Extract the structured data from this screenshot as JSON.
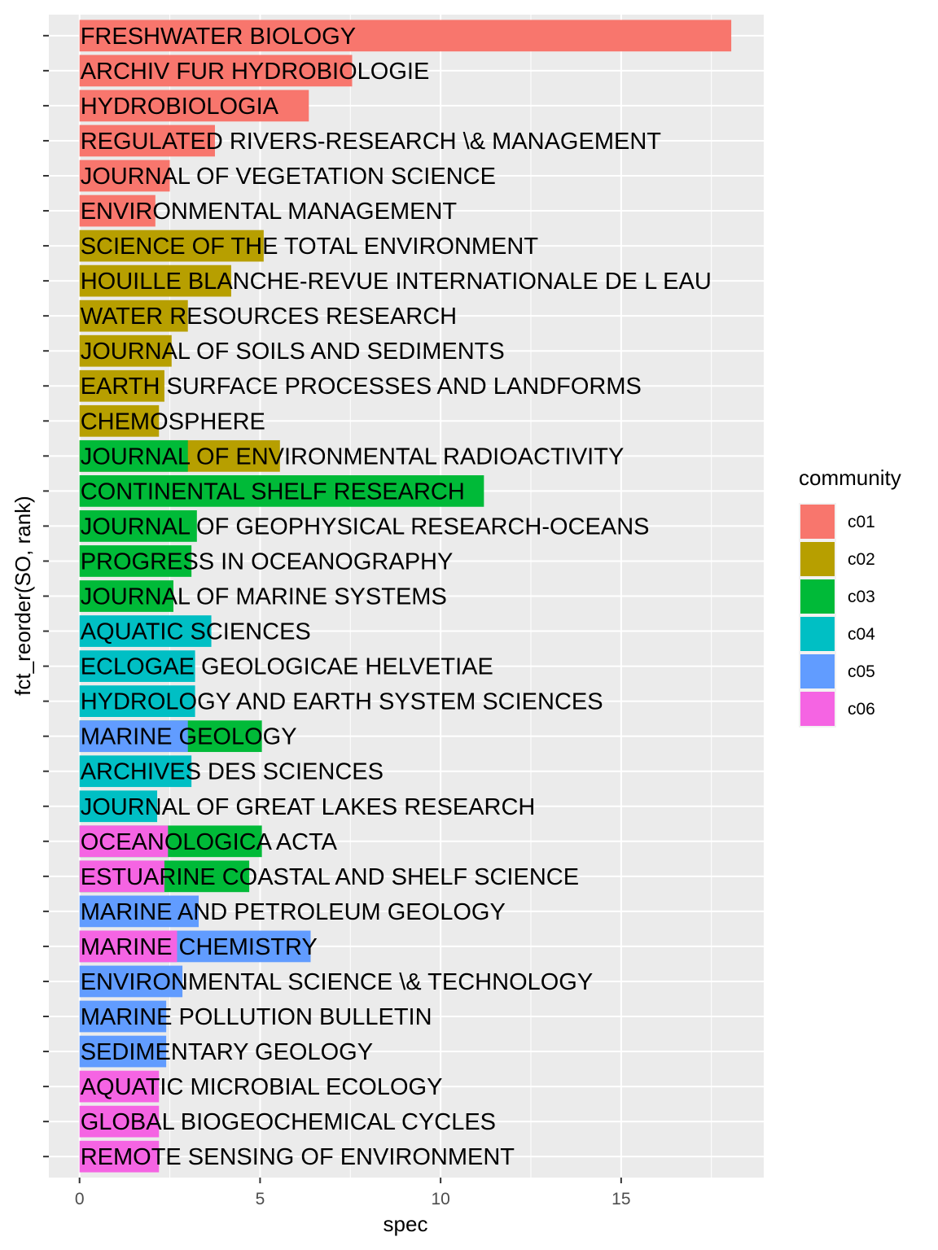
{
  "chart_data": {
    "type": "bar",
    "orientation": "horizontal",
    "xlabel": "spec",
    "ylabel": "fct_reorder(SO, rank)",
    "xlim": [
      -0.85,
      18.95
    ],
    "x_ticks": [
      0,
      5,
      10,
      15
    ],
    "grid": true,
    "legend": {
      "title": "community",
      "position": "right"
    },
    "communities": [
      {
        "name": "c01",
        "color": "#F8766D"
      },
      {
        "name": "c02",
        "color": "#B79F00"
      },
      {
        "name": "c03",
        "color": "#00BA38"
      },
      {
        "name": "c04",
        "color": "#00BFC4"
      },
      {
        "name": "c05",
        "color": "#619CFF"
      },
      {
        "name": "c06",
        "color": "#F564E3"
      }
    ],
    "categories": [
      "FRESHWATER BIOLOGY",
      "ARCHIV FUR HYDROBIOLOGIE",
      "HYDROBIOLOGIA",
      "REGULATED RIVERS-RESEARCH \\& MANAGEMENT",
      "JOURNAL OF VEGETATION SCIENCE",
      "ENVIRONMENTAL MANAGEMENT",
      "SCIENCE OF THE TOTAL ENVIRONMENT",
      "HOUILLE BLANCHE-REVUE INTERNATIONALE DE L EAU",
      "WATER RESOURCES RESEARCH",
      "JOURNAL OF SOILS AND SEDIMENTS",
      "EARTH SURFACE PROCESSES AND LANDFORMS",
      "CHEMOSPHERE",
      "JOURNAL OF ENVIRONMENTAL RADIOACTIVITY",
      "CONTINENTAL SHELF RESEARCH",
      "JOURNAL OF GEOPHYSICAL RESEARCH-OCEANS",
      "PROGRESS IN OCEANOGRAPHY",
      "JOURNAL OF MARINE SYSTEMS",
      "AQUATIC SCIENCES",
      "ECLOGAE GEOLOGICAE HELVETIAE",
      "HYDROLOGY AND EARTH SYSTEM SCIENCES",
      "MARINE GEOLOGY",
      "ARCHIVES DES SCIENCES",
      "JOURNAL OF GREAT LAKES RESEARCH",
      "OCEANOLOGICA ACTA",
      "ESTUARINE COASTAL AND SHELF SCIENCE",
      "MARINE AND PETROLEUM GEOLOGY",
      "MARINE CHEMISTRY",
      "ENVIRONMENTAL SCIENCE \\& TECHNOLOGY",
      "MARINE POLLUTION BULLETIN",
      "SEDIMENTARY GEOLOGY",
      "AQUATIC MICROBIAL ECOLOGY",
      "GLOBAL BIOGEOCHEMICAL CYCLES",
      "REMOTE SENSING OF ENVIRONMENT"
    ],
    "bars": [
      {
        "category": "FRESHWATER BIOLOGY",
        "community": "c01",
        "value": 18.05
      },
      {
        "category": "ARCHIV FUR HYDROBIOLOGIE",
        "community": "c01",
        "value": 7.55
      },
      {
        "category": "HYDROBIOLOGIA",
        "community": "c01",
        "value": 6.35
      },
      {
        "category": "REGULATED RIVERS-RESEARCH \\& MANAGEMENT",
        "community": "c01",
        "value": 3.75
      },
      {
        "category": "JOURNAL OF VEGETATION SCIENCE",
        "community": "c01",
        "value": 2.5
      },
      {
        "category": "ENVIRONMENTAL MANAGEMENT",
        "community": "c01",
        "value": 2.1
      },
      {
        "category": "SCIENCE OF THE TOTAL ENVIRONMENT",
        "community": "c02",
        "value": 5.1
      },
      {
        "category": "HOUILLE BLANCHE-REVUE INTERNATIONALE DE L EAU",
        "community": "c02",
        "value": 4.2
      },
      {
        "category": "WATER RESOURCES RESEARCH",
        "community": "c02",
        "value": 3.0
      },
      {
        "category": "JOURNAL OF SOILS AND SEDIMENTS",
        "community": "c02",
        "value": 2.55
      },
      {
        "category": "EARTH SURFACE PROCESSES AND LANDFORMS",
        "community": "c02",
        "value": 2.35
      },
      {
        "category": "CHEMOSPHERE",
        "community": "c02",
        "value": 2.2
      },
      {
        "category": "JOURNAL OF ENVIRONMENTAL RADIOACTIVITY",
        "community": "c02",
        "value": 5.55
      },
      {
        "category": "JOURNAL OF ENVIRONMENTAL RADIOACTIVITY",
        "community": "c03",
        "value": 3.0
      },
      {
        "category": "CONTINENTAL SHELF RESEARCH",
        "community": "c03",
        "value": 11.2
      },
      {
        "category": "JOURNAL OF GEOPHYSICAL RESEARCH-OCEANS",
        "community": "c03",
        "value": 3.25
      },
      {
        "category": "PROGRESS IN OCEANOGRAPHY",
        "community": "c03",
        "value": 3.1
      },
      {
        "category": "JOURNAL OF MARINE SYSTEMS",
        "community": "c03",
        "value": 2.6
      },
      {
        "category": "AQUATIC SCIENCES",
        "community": "c04",
        "value": 3.65
      },
      {
        "category": "ECLOGAE GEOLOGICAE HELVETIAE",
        "community": "c04",
        "value": 3.2
      },
      {
        "category": "HYDROLOGY AND EARTH SYSTEM SCIENCES",
        "community": "c04",
        "value": 3.2
      },
      {
        "category": "MARINE GEOLOGY",
        "community": "c03",
        "value": 5.05
      },
      {
        "category": "MARINE GEOLOGY",
        "community": "c05",
        "value": 3.0
      },
      {
        "category": "ARCHIVES DES SCIENCES",
        "community": "c04",
        "value": 3.1
      },
      {
        "category": "JOURNAL OF GREAT LAKES RESEARCH",
        "community": "c04",
        "value": 2.15
      },
      {
        "category": "OCEANOLOGICA ACTA",
        "community": "c03",
        "value": 5.05
      },
      {
        "category": "OCEANOLOGICA ACTA",
        "community": "c06",
        "value": 2.45
      },
      {
        "category": "ESTUARINE COASTAL AND SHELF SCIENCE",
        "community": "c03",
        "value": 4.7
      },
      {
        "category": "ESTUARINE COASTAL AND SHELF SCIENCE",
        "community": "c06",
        "value": 2.35
      },
      {
        "category": "MARINE AND PETROLEUM GEOLOGY",
        "community": "c05",
        "value": 3.3
      },
      {
        "category": "MARINE CHEMISTRY",
        "community": "c05",
        "value": 6.4
      },
      {
        "category": "MARINE CHEMISTRY",
        "community": "c06",
        "value": 2.7
      },
      {
        "category": "ENVIRONMENTAL SCIENCE \\& TECHNOLOGY",
        "community": "c05",
        "value": 2.85
      },
      {
        "category": "MARINE POLLUTION BULLETIN",
        "community": "c05",
        "value": 2.4
      },
      {
        "category": "SEDIMENTARY GEOLOGY",
        "community": "c05",
        "value": 2.4
      },
      {
        "category": "AQUATIC MICROBIAL ECOLOGY",
        "community": "c06",
        "value": 2.2
      },
      {
        "category": "GLOBAL BIOGEOCHEMICAL CYCLES",
        "community": "c06",
        "value": 2.2
      },
      {
        "category": "REMOTE SENSING OF ENVIRONMENT",
        "community": "c06",
        "value": 2.2
      }
    ]
  }
}
